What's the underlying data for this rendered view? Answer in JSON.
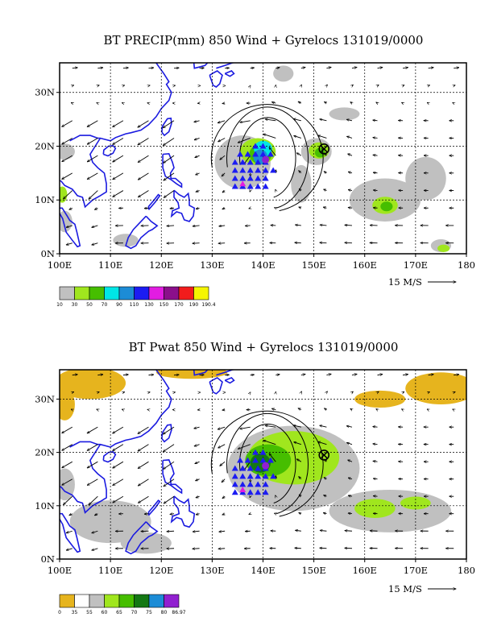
{
  "colors": {
    "coast": "#1b1be0",
    "vector": "#000000",
    "grid": "#000000",
    "marker_blue": "#1c1cf2",
    "marker_magenta": "#e21ce2",
    "marker_purple": "#9120d0"
  },
  "panels": [
    {
      "id": "precip",
      "title": "BT PRECIP(mm) 850 Wind + Gyrelocs 131019/0000",
      "x_ticks": [
        "100E",
        "110E",
        "120E",
        "130E",
        "140E",
        "150E",
        "160E",
        "170E",
        "180"
      ],
      "y_ticks": [
        "0N",
        "10N",
        "20N",
        "30N"
      ],
      "reference_vector": "15 M/S",
      "colorbar": {
        "colors": [
          "#c0c0c0",
          "#a0e61e",
          "#46be00",
          "#00e6e6",
          "#1c8cd6",
          "#1c1cf2",
          "#e21ce2",
          "#8b0f8b",
          "#f21c1c",
          "#f5f500"
        ],
        "labels": [
          "10",
          "30",
          "50",
          "70",
          "90",
          "110",
          "130",
          "150",
          "170",
          "190",
          "190.4"
        ]
      },
      "shading": [
        {
          "color": "#c0c0c0",
          "lon": 136,
          "lat": 17,
          "rx": 5.5,
          "ry": 5
        },
        {
          "color": "#a0e61e",
          "lon": 139,
          "lat": 19,
          "rx": 3.5,
          "ry": 2.5
        },
        {
          "color": "#46be00",
          "lon": 139.5,
          "lat": 18.5,
          "rx": 2.2,
          "ry": 1.8
        },
        {
          "color": "#00e6e6",
          "lon": 140,
          "lat": 19.5,
          "rx": 1.8,
          "ry": 1.5
        },
        {
          "color": "#1c8cd6",
          "lon": 139.5,
          "lat": 18,
          "rx": 1.4,
          "ry": 1.4
        },
        {
          "color": "#c0c0c0",
          "lon": 150.5,
          "lat": 19,
          "rx": 3,
          "ry": 2.5
        },
        {
          "color": "#a0e61e",
          "lon": 151,
          "lat": 19.2,
          "rx": 2,
          "ry": 1.5
        },
        {
          "color": "#46be00",
          "lon": 151.2,
          "lat": 18.8,
          "rx": 1,
          "ry": 0.9
        },
        {
          "color": "#c0c0c0",
          "lon": 147.5,
          "lat": 13,
          "rx": 2,
          "ry": 3.5
        },
        {
          "color": "#c0c0c0",
          "lon": 144,
          "lat": 33.5,
          "rx": 2,
          "ry": 1.5
        },
        {
          "color": "#c0c0c0",
          "lon": 156,
          "lat": 26,
          "rx": 3,
          "ry": 1.2
        },
        {
          "color": "#c0c0c0",
          "lon": 164,
          "lat": 10,
          "rx": 7,
          "ry": 4
        },
        {
          "color": "#a0e61e",
          "lon": 164,
          "lat": 9,
          "rx": 2.5,
          "ry": 1.6
        },
        {
          "color": "#46be00",
          "lon": 164.3,
          "lat": 8.8,
          "rx": 1.2,
          "ry": 0.9
        },
        {
          "color": "#c0c0c0",
          "lon": 172,
          "lat": 14,
          "rx": 4,
          "ry": 4
        },
        {
          "color": "#c0c0c0",
          "lon": 175,
          "lat": 1.5,
          "rx": 2,
          "ry": 1.2
        },
        {
          "color": "#a0e61e",
          "lon": 175.5,
          "lat": 1,
          "rx": 1.2,
          "ry": 0.7
        },
        {
          "color": "#c0c0c0",
          "lon": 101,
          "lat": 19,
          "rx": 2,
          "ry": 1.5
        },
        {
          "color": "#a0e61e",
          "lon": 100.5,
          "lat": 11,
          "rx": 1,
          "ry": 1.5
        },
        {
          "color": "#c0c0c0",
          "lon": 101,
          "lat": 6,
          "rx": 1.5,
          "ry": 2
        },
        {
          "color": "#c0c0c0",
          "lon": 113,
          "lat": 2.5,
          "rx": 2.5,
          "ry": 1.2
        }
      ],
      "markers": {
        "center_lon": 152,
        "center_lat": 19.5
      }
    },
    {
      "id": "pwat",
      "title": "BT Pwat 850 Wind + Gyrelocs 131019/0000",
      "x_ticks": [
        "100E",
        "110E",
        "120E",
        "130E",
        "140E",
        "150E",
        "160E",
        "170E",
        "180"
      ],
      "y_ticks": [
        "0N",
        "10N",
        "20N",
        "30N"
      ],
      "reference_vector": "15 M/S",
      "colorbar": {
        "colors": [
          "#e6b41e",
          "#ffffff",
          "#c0c0c0",
          "#a0e61e",
          "#46be00",
          "#147814",
          "#1c8cd6",
          "#9120d0"
        ],
        "labels": [
          "0",
          "35",
          "55",
          "60",
          "65",
          "70",
          "75",
          "80",
          "86.97"
        ]
      },
      "shading": [
        {
          "color": "#e6b41e",
          "lon": 106,
          "lat": 33,
          "rx": 7,
          "ry": 3
        },
        {
          "color": "#e6b41e",
          "lon": 101,
          "lat": 29,
          "rx": 2,
          "ry": 3
        },
        {
          "color": "#e6b41e",
          "lon": 126,
          "lat": 35,
          "rx": 7,
          "ry": 1.2
        },
        {
          "color": "#e6b41e",
          "lon": 175,
          "lat": 32,
          "rx": 7,
          "ry": 3
        },
        {
          "color": "#e6b41e",
          "lon": 163,
          "lat": 30,
          "rx": 5,
          "ry": 1.6
        },
        {
          "color": "#c0c0c0",
          "lon": 146,
          "lat": 17,
          "rx": 13,
          "ry": 8
        },
        {
          "color": "#a0e61e",
          "lon": 146,
          "lat": 19,
          "rx": 9,
          "ry": 5
        },
        {
          "color": "#46be00",
          "lon": 141,
          "lat": 18.5,
          "rx": 4.5,
          "ry": 3
        },
        {
          "color": "#147814",
          "lon": 139.5,
          "lat": 18,
          "rx": 2,
          "ry": 1.8
        },
        {
          "color": "#c0c0c0",
          "lon": 165,
          "lat": 9,
          "rx": 12,
          "ry": 4
        },
        {
          "color": "#a0e61e",
          "lon": 162,
          "lat": 9.5,
          "rx": 4,
          "ry": 1.8
        },
        {
          "color": "#a0e61e",
          "lon": 170,
          "lat": 10.5,
          "rx": 3,
          "ry": 1.2
        },
        {
          "color": "#c0c0c0",
          "lon": 110,
          "lat": 7,
          "rx": 8,
          "ry": 4
        },
        {
          "color": "#c0c0c0",
          "lon": 117,
          "lat": 3,
          "rx": 5,
          "ry": 2
        },
        {
          "color": "#c0c0c0",
          "lon": 101,
          "lat": 14,
          "rx": 2,
          "ry": 3
        }
      ],
      "markers": {
        "center_lon": 152,
        "center_lat": 19.5
      }
    }
  ]
}
